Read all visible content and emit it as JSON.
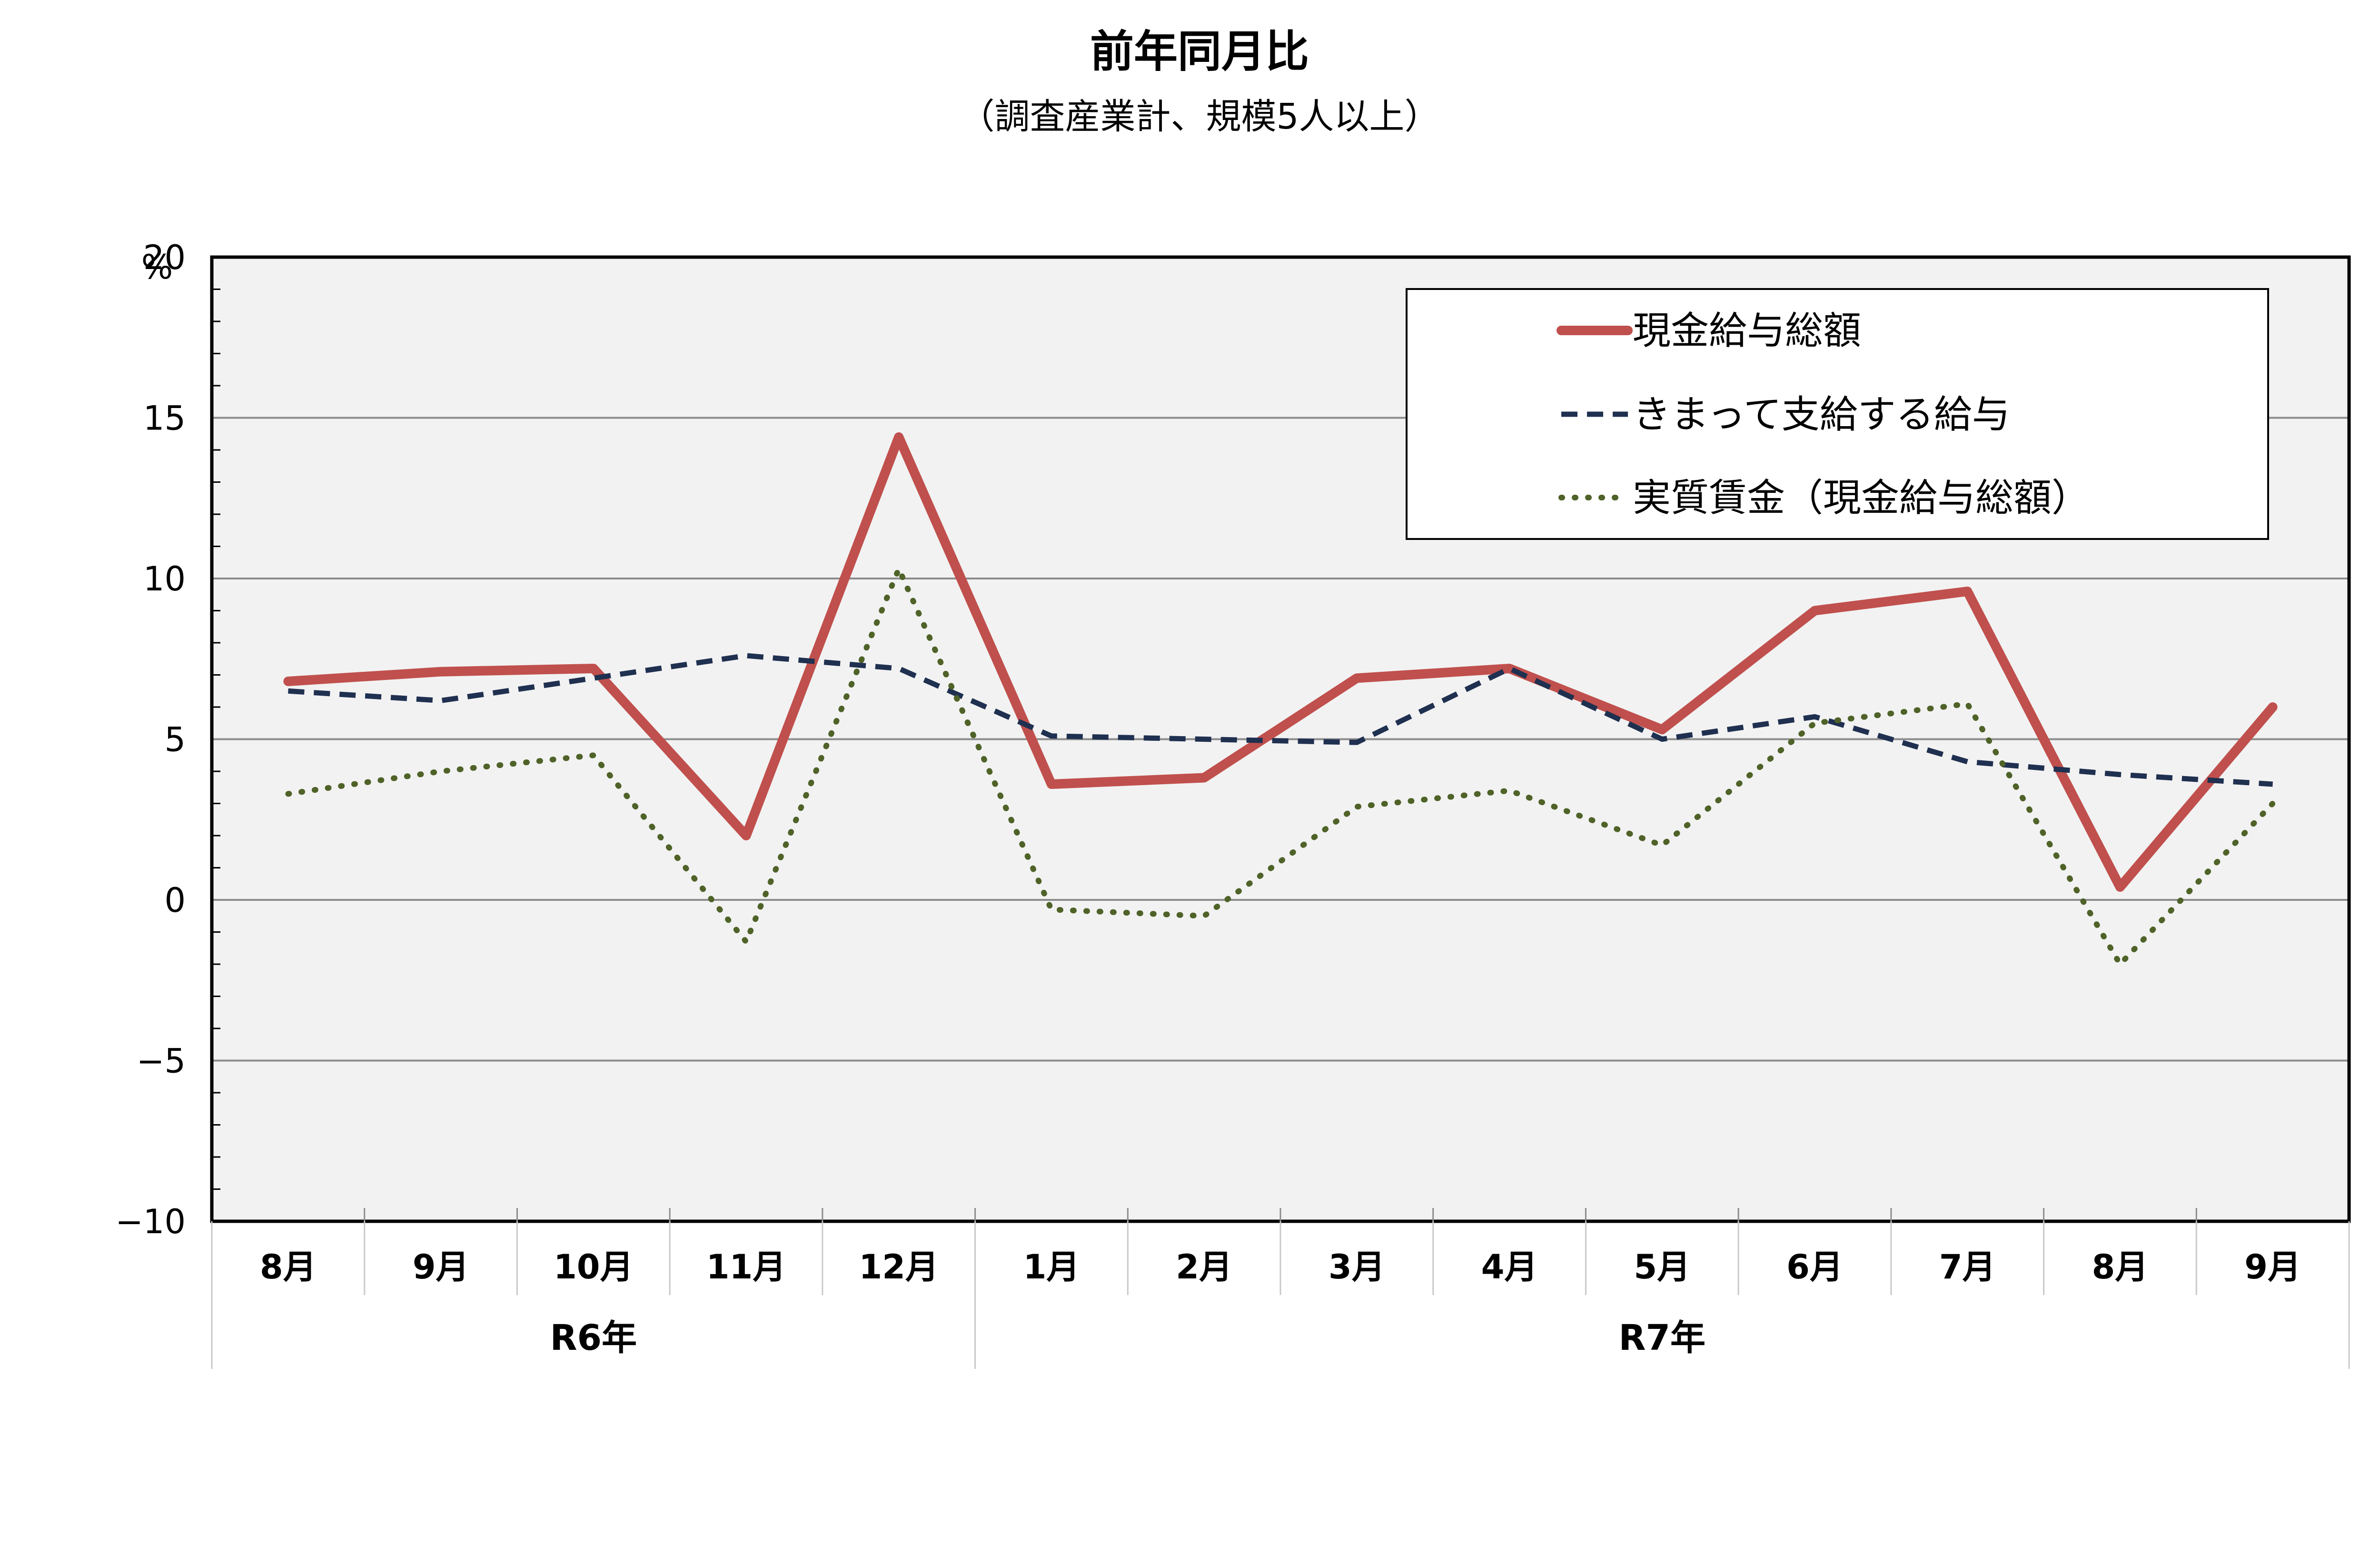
{
  "chart_data": {
    "type": "line",
    "title": "前年同月比",
    "subtitle": "（調査産業計、規模5人以上）",
    "ylabel": "%",
    "ylim": [
      -10,
      20
    ],
    "yticks": [
      -10,
      -5,
      0,
      5,
      10,
      15,
      20
    ],
    "ytick_labels": [
      "−10",
      "−5",
      "0",
      "5",
      "10",
      "15",
      "20"
    ],
    "grid": true,
    "legend_position": "top-right",
    "categories": [
      "8月",
      "9月",
      "10月",
      "11月",
      "12月",
      "1月",
      "2月",
      "3月",
      "4月",
      "5月",
      "6月",
      "7月",
      "8月",
      "9月"
    ],
    "groups": [
      {
        "label": "R6年",
        "start": 0,
        "end": 4
      },
      {
        "label": "R7年",
        "start": 5,
        "end": 13
      }
    ],
    "series": [
      {
        "name": "現金給与総額",
        "style": "solid",
        "color": "#c0504d",
        "values": [
          6.8,
          7.1,
          7.2,
          2.0,
          14.4,
          3.6,
          3.8,
          6.9,
          7.2,
          5.3,
          9.0,
          9.6,
          0.4,
          6.0
        ]
      },
      {
        "name": "きまって支給する給与",
        "style": "dashed",
        "color": "#1f3050",
        "values": [
          6.5,
          6.2,
          6.9,
          7.6,
          7.2,
          5.1,
          5.0,
          4.9,
          7.2,
          5.0,
          5.7,
          4.3,
          3.9,
          3.6
        ]
      },
      {
        "name": "実質賃金（現金給与総額）",
        "style": "dotted",
        "color": "#4f6228",
        "values": [
          3.3,
          4.0,
          4.5,
          -1.3,
          10.3,
          -0.3,
          -0.5,
          2.9,
          3.4,
          1.7,
          5.5,
          6.1,
          -2.0,
          3.0
        ]
      }
    ]
  }
}
